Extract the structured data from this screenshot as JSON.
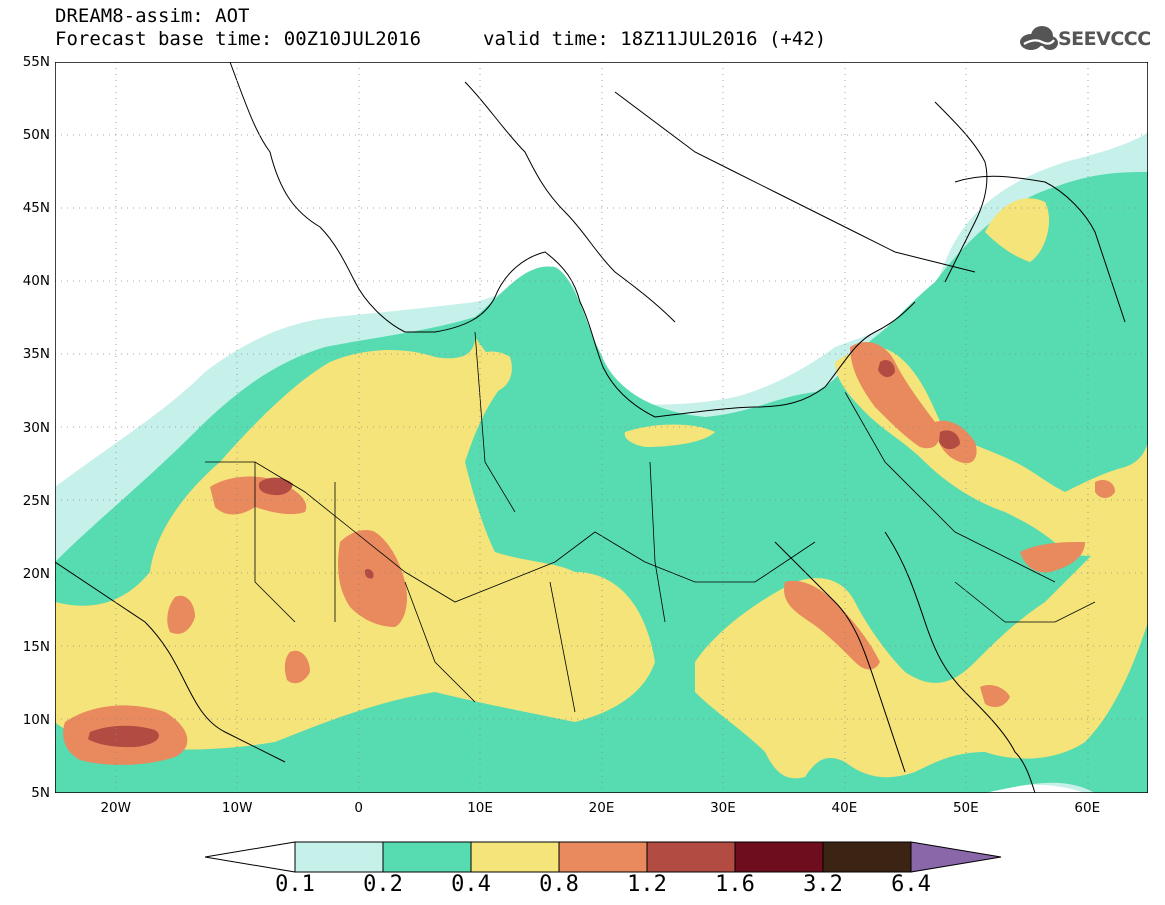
{
  "header": {
    "model_title": "DREAM8-assim: AOT",
    "base_time": "Forecast base time: 00Z10JUL2016",
    "valid_time": "valid time: 18Z11JUL2016 (+42)"
  },
  "logo": {
    "text": "SEEVCCC",
    "icon": "cloud-icon"
  },
  "map": {
    "variable": "AOT",
    "lat_ticks": [
      "55N",
      "50N",
      "45N",
      "40N",
      "35N",
      "30N",
      "25N",
      "20N",
      "15N",
      "10N",
      "5N"
    ],
    "lon_ticks": [
      "20W",
      "10W",
      "0",
      "10E",
      "20E",
      "30E",
      "40E",
      "50E",
      "60E"
    ],
    "extent": {
      "lon_min": -25,
      "lon_max": 65,
      "lat_min": 5,
      "lat_max": 55
    }
  },
  "colorbar": {
    "levels": [
      "0.1",
      "0.2",
      "0.4",
      "0.8",
      "1.2",
      "1.6",
      "3.2",
      "6.4"
    ],
    "colors": [
      "#ffffff",
      "#c6f0ea",
      "#57dbb0",
      "#f5e47a",
      "#e8895e",
      "#b24c42",
      "#6e0d1e",
      "#3c2414",
      "#8a67a8"
    ]
  }
}
